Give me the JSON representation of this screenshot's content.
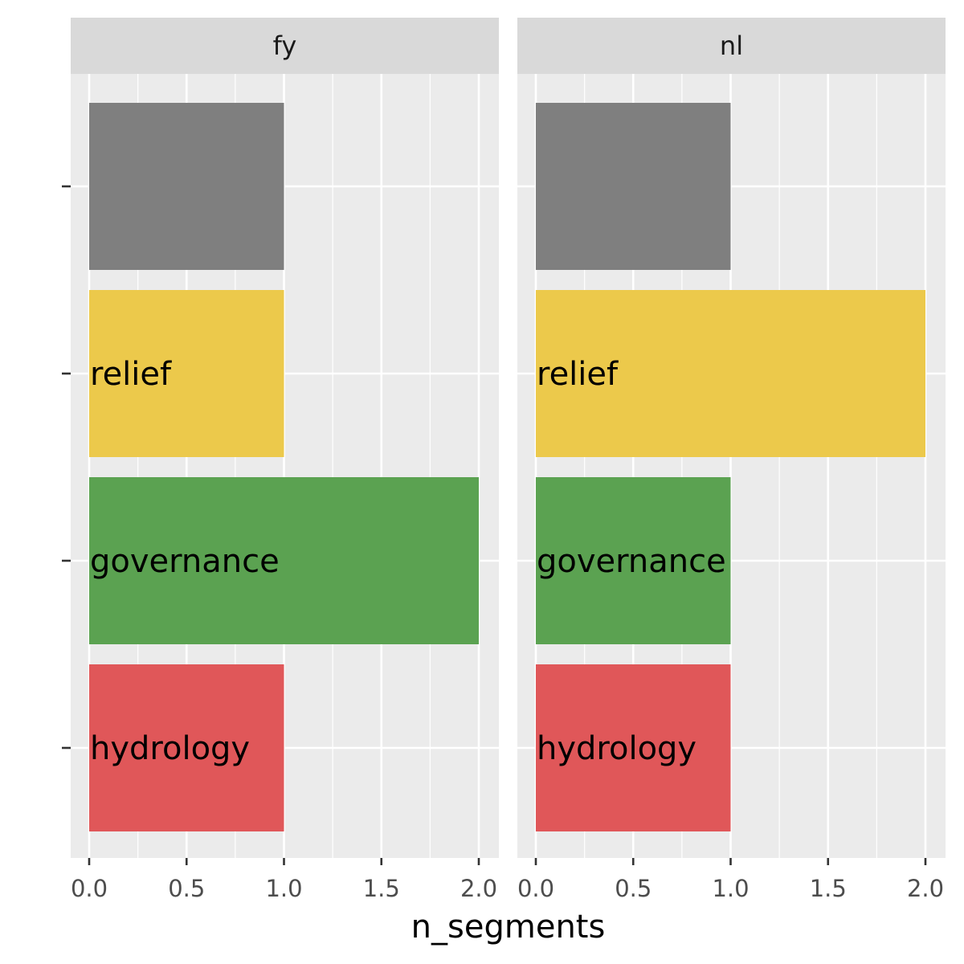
{
  "chart_data": {
    "type": "bar",
    "orientation": "horizontal",
    "facet_by": "panel",
    "categories": [
      "",
      "relief",
      "governance",
      "hydrology"
    ],
    "category_colors": [
      "#7f7f7f",
      "#ecc94b",
      "#5ba251",
      "#e05759"
    ],
    "panels": [
      {
        "name": "fy",
        "values": [
          1,
          1,
          2,
          1
        ]
      },
      {
        "name": "nl",
        "values": [
          1,
          2,
          1,
          1
        ]
      }
    ],
    "xlabel": "n_segments",
    "ylabel": "",
    "xlim": [
      0,
      2
    ],
    "x_ticks": [
      "0.0",
      "0.5",
      "1.0",
      "1.5",
      "2.0"
    ],
    "grid": true,
    "legend": "none"
  }
}
